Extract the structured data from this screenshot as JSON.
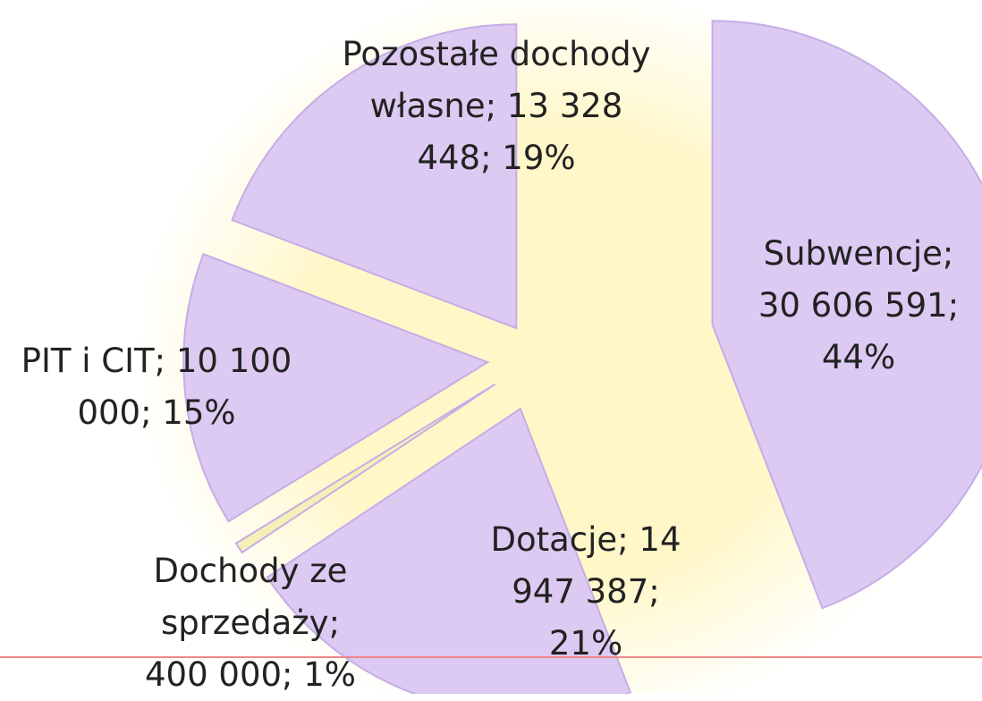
{
  "chart_data": {
    "type": "pie",
    "categories": [
      "Subwencje",
      "Dotacje",
      "Dochody ze sprzedaży",
      "PIT i CIT",
      "Pozostałe dochody własne"
    ],
    "values": [
      30606591,
      14947387,
      400000,
      10100000,
      13328448
    ],
    "value_labels": [
      "30 606 591",
      "14 947 387",
      "400 000",
      "10 100 000",
      "13 328 448"
    ],
    "percents": [
      44,
      21,
      1,
      15,
      19
    ],
    "percent_labels": [
      "44%",
      "21%",
      "1%",
      "15%",
      "19%"
    ],
    "separator": ";",
    "colors": [
      "#dccaf2",
      "#dccaf2",
      "#f4f0b8",
      "#dccaf2",
      "#dccaf2"
    ]
  }
}
